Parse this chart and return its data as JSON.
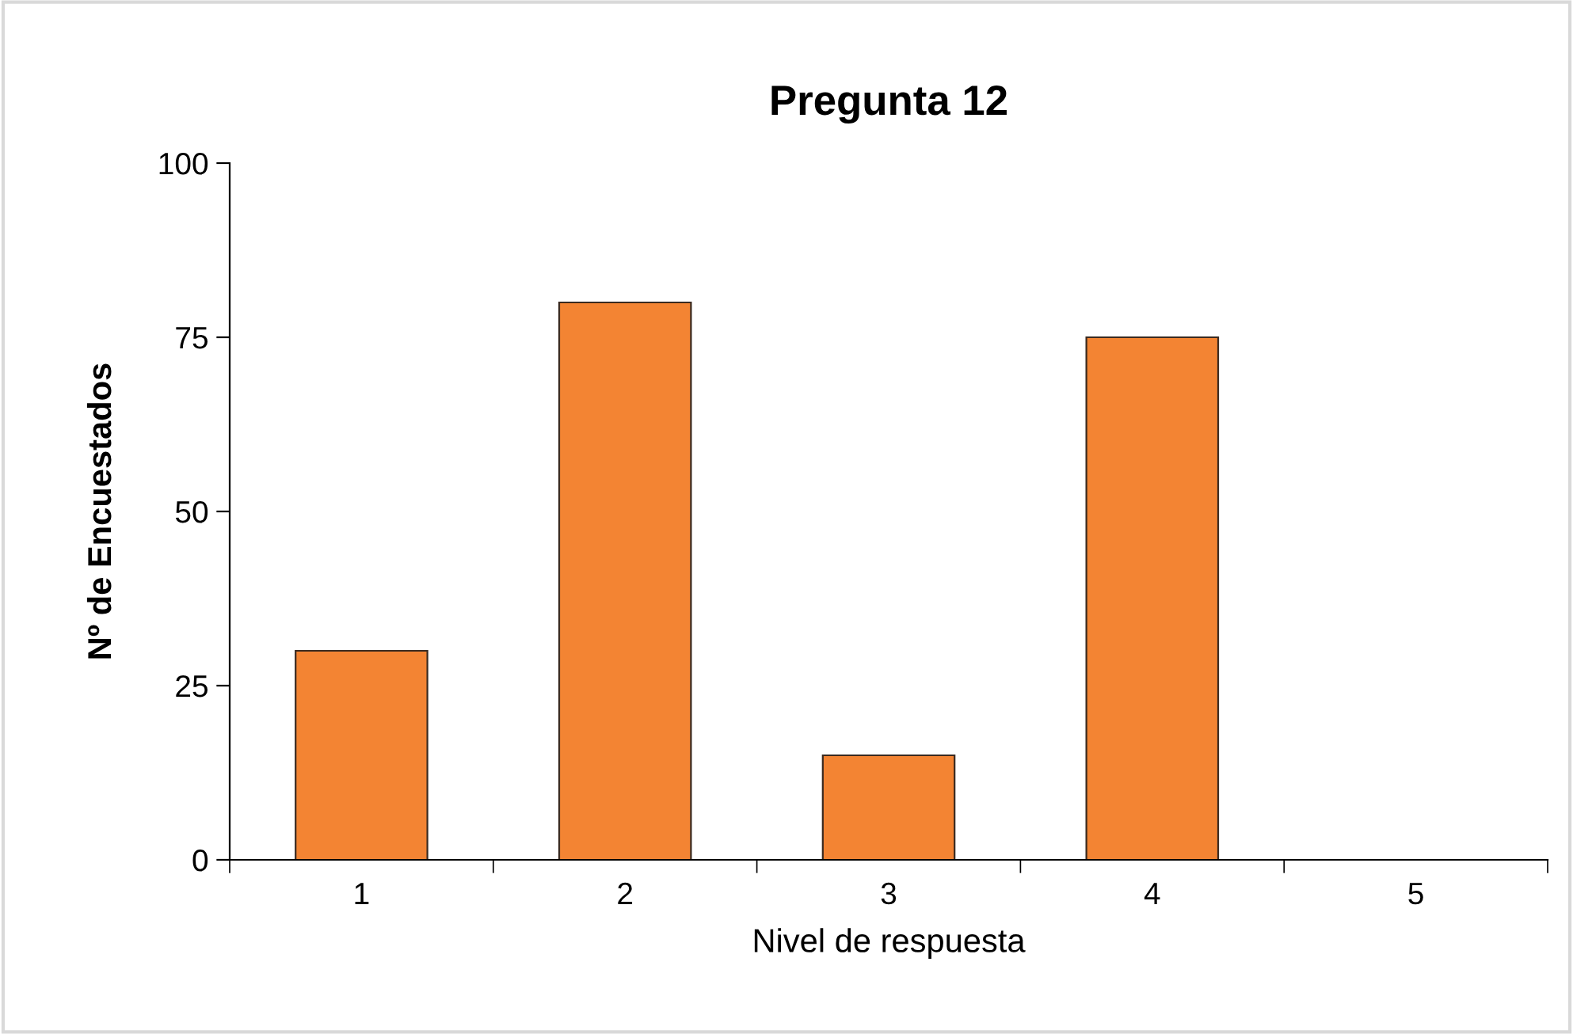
{
  "chart_data": {
    "type": "bar",
    "title": "Pregunta 12",
    "xlabel": "Nivel de respuesta",
    "ylabel": "Nº de Encuestados",
    "categories": [
      "1",
      "2",
      "3",
      "4",
      "5"
    ],
    "values": [
      30,
      80,
      15,
      75,
      0
    ],
    "color": "#f38433",
    "ylim": [
      0,
      100
    ],
    "yticks": [
      0,
      25,
      50,
      75,
      100
    ],
    "grid": false,
    "legend": false
  }
}
